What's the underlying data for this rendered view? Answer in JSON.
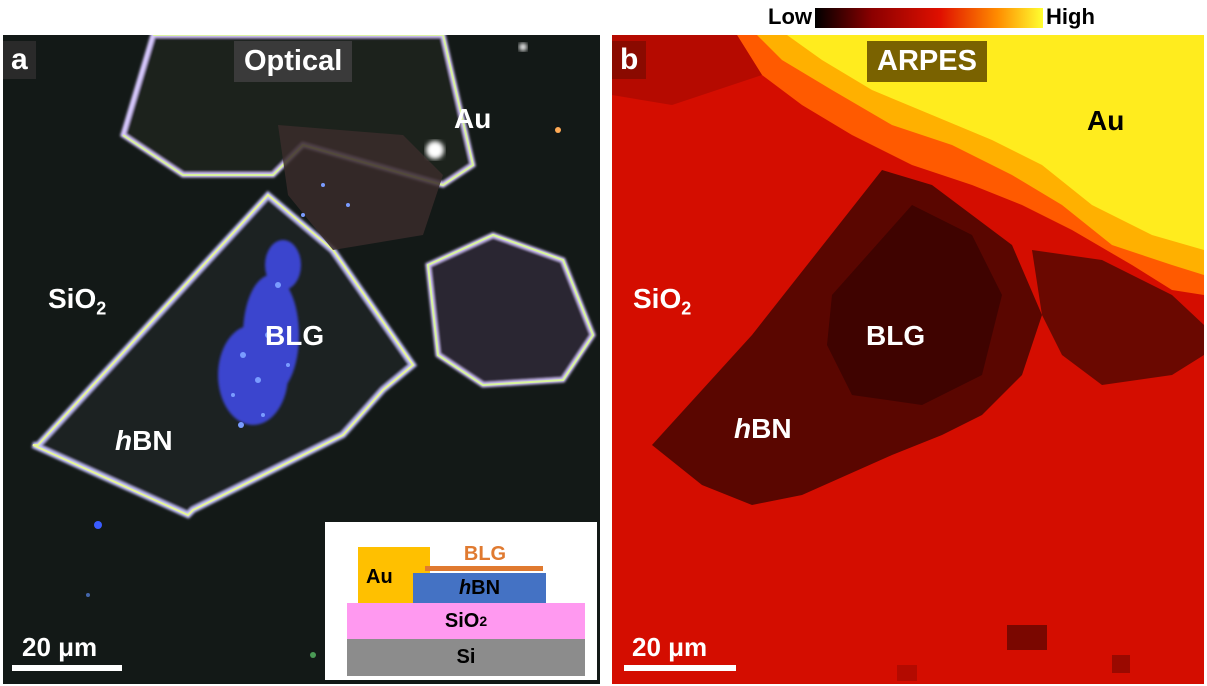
{
  "panel_a": {
    "label": "a",
    "title": "Optical",
    "materials": {
      "au": "Au",
      "sio2": "SiO",
      "sio2_sub": "2",
      "blg": "BLG",
      "hbn_italic": "h",
      "hbn_rest": "BN"
    },
    "scalebar": "20 μm",
    "inset": {
      "au": "Au",
      "blg": "BLG",
      "hbn_italic": "h",
      "hbn_rest": "BN",
      "sio2": "SiO",
      "sio2_sub": "2",
      "si": "Si"
    }
  },
  "panel_b": {
    "label": "b",
    "title": "ARPES",
    "materials": {
      "au": "Au",
      "sio2": "SiO",
      "sio2_sub": "2",
      "blg": "BLG",
      "hbn_italic": "h",
      "hbn_rest": "BN"
    },
    "scalebar": "20 μm"
  },
  "colorbar": {
    "low": "Low",
    "high": "High",
    "colors": [
      "#000000",
      "#8b0000",
      "#e01000",
      "#ff8c00",
      "#ffff30"
    ]
  },
  "colors": {
    "inset_au": "#ffc000",
    "inset_blg": "#e07a30",
    "inset_hbn": "#4472c4",
    "inset_sio2": "#ff99f0",
    "inset_si": "#8c8c8c"
  }
}
